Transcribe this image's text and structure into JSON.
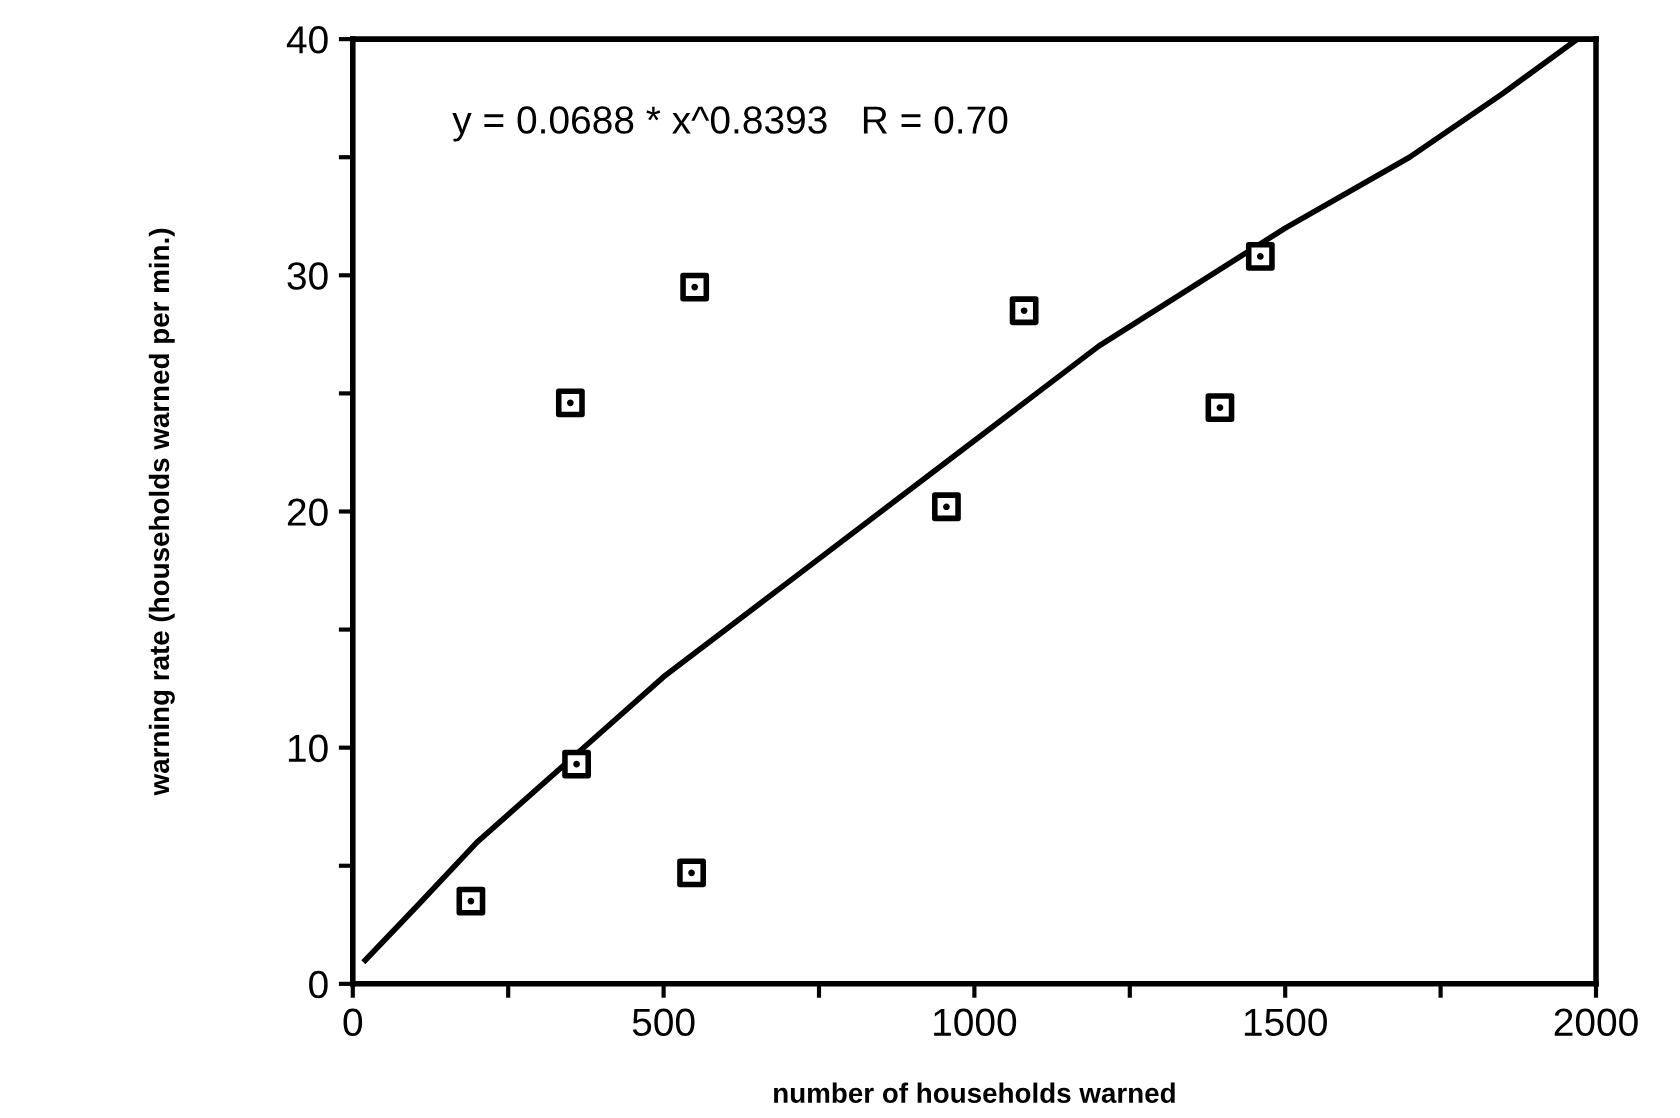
{
  "chart_data": {
    "type": "scatter",
    "xlabel": "number of households warned",
    "ylabel": "warning rate (households warned per min.)",
    "annotations": [
      "y = 0.0688 * x^0.8393   R = 0.70"
    ],
    "xlim": [
      0,
      2000
    ],
    "ylim": [
      0,
      40
    ],
    "xticks": [
      0,
      {
        "value": 250,
        "label": null
      },
      500,
      {
        "value": 750,
        "label": null
      },
      1000,
      {
        "value": 1250,
        "label": null
      },
      1500,
      {
        "value": 1750,
        "label": null
      },
      2000
    ],
    "yticks": [
      0,
      {
        "value": 5,
        "label": null
      },
      10,
      {
        "value": 15,
        "label": null
      },
      20,
      {
        "value": 25,
        "label": null
      },
      30,
      {
        "value": 35,
        "label": null
      },
      40
    ],
    "grid": false,
    "series": [
      {
        "marker": "square",
        "color": "#000000",
        "x": [
          190,
          350,
          360,
          545,
          550,
          955,
          1080,
          1395,
          1460
        ],
        "values": [
          3.5,
          24.6,
          9.3,
          4.7,
          29.5,
          20.2,
          28.5,
          24.4,
          30.8
        ]
      },
      {
        "type": "line",
        "color": "#000000",
        "x": [
          20,
          100,
          200,
          350,
          500,
          700,
          950,
          1100,
          1200,
          1350,
          1500,
          1700,
          1850,
          1970
        ],
        "values": [
          1,
          3.2,
          6,
          9.5,
          13,
          17,
          22,
          25,
          27,
          29.5,
          32,
          35,
          37.7,
          40
        ]
      }
    ]
  }
}
